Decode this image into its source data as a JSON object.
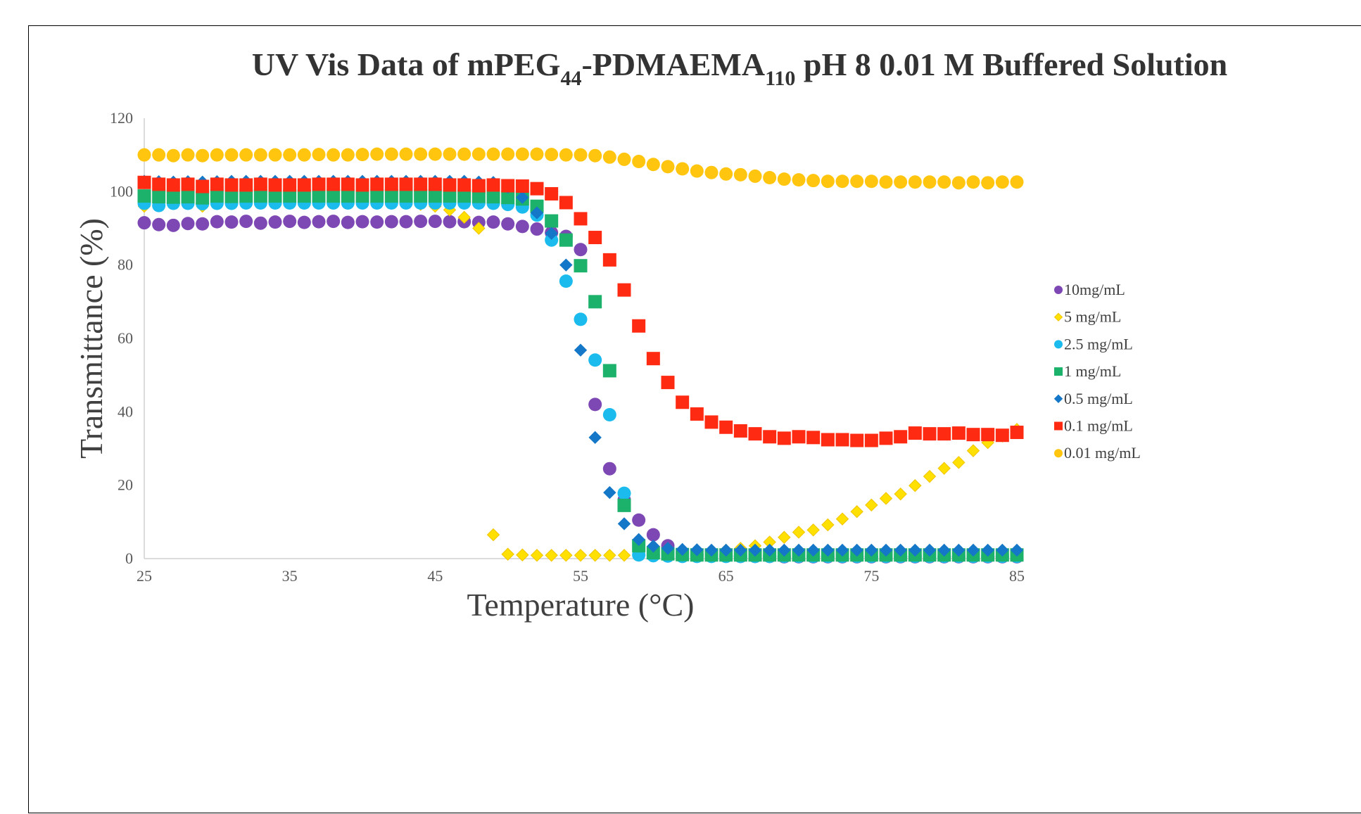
{
  "chart_data": {
    "type": "scatter",
    "title_parts": [
      {
        "text": "UV Vis Data of mPEG",
        "sub": false
      },
      {
        "text": "44",
        "sub": true
      },
      {
        "text": "-PDMAEMA",
        "sub": false
      },
      {
        "text": "110",
        "sub": true
      },
      {
        "text": " pH 8 0.01 M Buffered Solution",
        "sub": false
      }
    ],
    "xlabel": "Temperature (°C)",
    "ylabel": "Transmittance (%)",
    "xlim": [
      25,
      85
    ],
    "ylim": [
      0,
      120
    ],
    "xticks": [
      25,
      35,
      45,
      55,
      65,
      75,
      85
    ],
    "yticks": [
      0,
      20,
      40,
      60,
      80,
      100,
      120
    ],
    "grid": false,
    "legend_position": "right",
    "series": [
      {
        "name": "10mg/mL",
        "marker": "circle",
        "color": "#7D47B4",
        "x": [
          25,
          26,
          27,
          28,
          29,
          30,
          31,
          32,
          33,
          34,
          35,
          36,
          37,
          38,
          39,
          40,
          41,
          42,
          43,
          44,
          45,
          46,
          47,
          48,
          49,
          50,
          51,
          52,
          53,
          54,
          55,
          56,
          57,
          58,
          59,
          60,
          61,
          62,
          63,
          64,
          65,
          66,
          67,
          68,
          69,
          70,
          71,
          72,
          73,
          74,
          75,
          76,
          77,
          78,
          79,
          80,
          81,
          82,
          83,
          84,
          85
        ],
        "y": [
          91.5,
          91,
          90.8,
          91.3,
          91.2,
          91.8,
          91.7,
          91.9,
          91.4,
          91.7,
          91.9,
          91.6,
          91.8,
          91.9,
          91.6,
          91.8,
          91.7,
          91.8,
          91.8,
          91.9,
          91.9,
          91.8,
          91.8,
          91.6,
          91.7,
          91.2,
          90.5,
          89.8,
          88.8,
          87.8,
          84.2,
          42,
          24.5,
          16,
          10.5,
          6.5,
          3.5,
          1.5,
          1,
          0.8,
          0.7,
          0.6,
          0.6,
          0.6,
          0.5,
          0.5,
          0.5,
          0.5,
          0.5,
          0.5,
          0.5,
          0.5,
          0.5,
          0.5,
          0.5,
          0.5,
          0.5,
          0.5,
          0.5,
          0.5,
          0.5
        ]
      },
      {
        "name": "5 mg/mL",
        "marker": "diamond",
        "color": "#FFE000",
        "x": [
          25,
          26,
          27,
          28,
          29,
          30,
          31,
          32,
          33,
          34,
          35,
          36,
          37,
          38,
          39,
          40,
          41,
          42,
          43,
          44,
          45,
          46,
          47,
          48,
          49,
          50,
          51,
          52,
          53,
          54,
          55,
          56,
          57,
          58,
          59,
          60,
          61,
          62,
          63,
          64,
          65,
          66,
          67,
          68,
          69,
          70,
          71,
          72,
          73,
          74,
          75,
          76,
          77,
          78,
          79,
          80,
          81,
          82,
          83,
          84,
          85
        ],
        "y": [
          96,
          97,
          97.5,
          97,
          96,
          97,
          97.5,
          97.5,
          97.5,
          97.5,
          97.5,
          97.5,
          97.5,
          97.5,
          97.5,
          97.5,
          97.5,
          97.5,
          97,
          96.5,
          96,
          95,
          93,
          90,
          6.5,
          1.2,
          1,
          0.9,
          0.9,
          0.9,
          0.9,
          0.9,
          0.9,
          0.9,
          0.9,
          1,
          1.2,
          1.4,
          1.6,
          1.9,
          2.3,
          2.8,
          3.5,
          4.5,
          5.8,
          7.2,
          7.8,
          9.2,
          10.8,
          12.8,
          14.6,
          16.4,
          17.6,
          19.9,
          22.4,
          24.6,
          26.2,
          29.4,
          31.6,
          33.4,
          35.2
        ]
      },
      {
        "name": "2.5 mg/mL",
        "marker": "circle",
        "color": "#1BBBEE",
        "x": [
          25,
          26,
          27,
          28,
          29,
          30,
          31,
          32,
          33,
          34,
          35,
          36,
          37,
          38,
          39,
          40,
          41,
          42,
          43,
          44,
          45,
          46,
          47,
          48,
          49,
          50,
          51,
          52,
          53,
          54,
          55,
          56,
          57,
          58,
          59,
          60,
          61,
          62,
          63,
          64,
          65,
          66,
          67,
          68,
          69,
          70,
          71,
          72,
          73,
          74,
          75,
          76,
          77,
          78,
          79,
          80,
          81,
          82,
          83,
          84,
          85
        ],
        "y": [
          96.8,
          96.2,
          96.8,
          96.8,
          96.7,
          96.8,
          96.8,
          96.9,
          96.9,
          96.9,
          96.9,
          96.9,
          96.9,
          96.9,
          96.9,
          96.9,
          96.9,
          96.9,
          96.9,
          96.9,
          96.9,
          96.9,
          96.9,
          96.9,
          96.8,
          96.5,
          95.8,
          93.6,
          86.8,
          75.6,
          65.2,
          54.1,
          39.2,
          17.8,
          1,
          0.8,
          0.7,
          0.6,
          0.6,
          0.6,
          0.6,
          0.6,
          0.6,
          0.6,
          0.6,
          0.6,
          0.6,
          0.6,
          0.6,
          0.6,
          0.6,
          0.6,
          0.6,
          0.6,
          0.6,
          0.6,
          0.6,
          0.6,
          0.6,
          0.6,
          0.6
        ]
      },
      {
        "name": "1 mg/mL",
        "marker": "square",
        "color": "#1DB26B",
        "x": [
          25,
          26,
          27,
          28,
          29,
          30,
          31,
          32,
          33,
          34,
          35,
          36,
          37,
          38,
          39,
          40,
          41,
          42,
          43,
          44,
          45,
          46,
          47,
          48,
          49,
          50,
          51,
          52,
          53,
          54,
          55,
          56,
          57,
          58,
          59,
          60,
          61,
          62,
          63,
          64,
          65,
          66,
          67,
          68,
          69,
          70,
          71,
          72,
          73,
          74,
          75,
          76,
          77,
          78,
          79,
          80,
          81,
          82,
          83,
          84,
          85
        ],
        "y": [
          98.8,
          98.6,
          98.5,
          98.6,
          98.3,
          98.8,
          98.7,
          98.8,
          98.8,
          98.8,
          98.8,
          98.8,
          98.8,
          98.8,
          98.8,
          98.8,
          98.8,
          98.8,
          98.8,
          98.8,
          98.8,
          98.8,
          98.8,
          98.7,
          98.6,
          98.4,
          98,
          96,
          92,
          86.8,
          79.8,
          70,
          51.2,
          14.5,
          3.5,
          1.6,
          1.3,
          1.1,
          1,
          1,
          1,
          1,
          1,
          1,
          1,
          1,
          1,
          1,
          1,
          1,
          1,
          1,
          1,
          1,
          1,
          1,
          1,
          1,
          1,
          1,
          1
        ]
      },
      {
        "name": "0.5 mg/mL",
        "marker": "diamond",
        "color": "#1577C7",
        "x": [
          25,
          26,
          27,
          28,
          29,
          30,
          31,
          32,
          33,
          34,
          35,
          36,
          37,
          38,
          39,
          40,
          41,
          42,
          43,
          44,
          45,
          46,
          47,
          48,
          49,
          50,
          51,
          52,
          53,
          54,
          55,
          56,
          57,
          58,
          59,
          60,
          61,
          62,
          63,
          64,
          65,
          66,
          67,
          68,
          69,
          70,
          71,
          72,
          73,
          74,
          75,
          76,
          77,
          78,
          79,
          80,
          81,
          82,
          83,
          84,
          85
        ],
        "y": [
          102.8,
          102.7,
          102.6,
          102.7,
          102.6,
          102.7,
          102.8,
          102.8,
          102.8,
          102.8,
          102.8,
          102.8,
          102.8,
          102.8,
          102.8,
          102.8,
          102.8,
          102.8,
          102.8,
          102.8,
          102.8,
          102.8,
          102.8,
          102.6,
          102.5,
          101.2,
          98.4,
          94.2,
          88.6,
          80,
          56.8,
          33,
          18,
          9.5,
          5.2,
          3.4,
          2.8,
          2.5,
          2.4,
          2.3,
          2.3,
          2.3,
          2.3,
          2.3,
          2.3,
          2.3,
          2.3,
          2.3,
          2.3,
          2.3,
          2.3,
          2.3,
          2.3,
          2.3,
          2.3,
          2.3,
          2.3,
          2.3,
          2.3,
          2.3,
          2.3
        ]
      },
      {
        "name": "0.1 mg/mL",
        "marker": "square",
        "color": "#FF2A12",
        "x": [
          25,
          26,
          27,
          28,
          29,
          30,
          31,
          32,
          33,
          34,
          35,
          36,
          37,
          38,
          39,
          40,
          41,
          42,
          43,
          44,
          45,
          46,
          47,
          48,
          49,
          50,
          51,
          52,
          53,
          54,
          55,
          56,
          57,
          58,
          59,
          60,
          61,
          62,
          63,
          64,
          65,
          66,
          67,
          68,
          69,
          70,
          71,
          72,
          73,
          74,
          75,
          76,
          77,
          78,
          79,
          80,
          81,
          82,
          83,
          84,
          85
        ],
        "y": [
          102.5,
          102,
          101.8,
          102,
          101.4,
          102,
          101.8,
          101.8,
          102,
          101.8,
          101.8,
          101.8,
          102,
          102,
          102,
          101.8,
          102,
          102,
          102,
          102,
          102,
          101.8,
          101.8,
          101.6,
          101.8,
          101.6,
          101.5,
          100.8,
          99.4,
          97,
          92.6,
          87.5,
          81.4,
          73.2,
          63.4,
          54.5,
          48,
          42.6,
          39.4,
          37.2,
          35.8,
          34.8,
          34,
          33.2,
          32.8,
          33.2,
          33,
          32.4,
          32.4,
          32.2,
          32.2,
          32.8,
          33.2,
          34.2,
          34,
          34,
          34.2,
          33.8,
          33.8,
          33.6,
          34.4
        ]
      },
      {
        "name": "0.01 mg/mL",
        "marker": "circle",
        "color": "#FFC50F",
        "x": [
          25,
          26,
          27,
          28,
          29,
          30,
          31,
          32,
          33,
          34,
          35,
          36,
          37,
          38,
          39,
          40,
          41,
          42,
          43,
          44,
          45,
          46,
          47,
          48,
          49,
          50,
          51,
          52,
          53,
          54,
          55,
          56,
          57,
          58,
          59,
          60,
          61,
          62,
          63,
          64,
          65,
          66,
          67,
          68,
          69,
          70,
          71,
          72,
          73,
          74,
          75,
          76,
          77,
          78,
          79,
          80,
          81,
          82,
          83,
          84,
          85
        ],
        "y": [
          110,
          110,
          109.8,
          110,
          109.8,
          110,
          110,
          110,
          110,
          110,
          110,
          110,
          110.1,
          110,
          110,
          110.1,
          110.2,
          110.2,
          110.2,
          110.2,
          110.2,
          110.2,
          110.2,
          110.2,
          110.2,
          110.2,
          110.2,
          110.2,
          110.1,
          110,
          110,
          109.8,
          109.4,
          108.8,
          108.2,
          107.4,
          106.8,
          106.2,
          105.6,
          105.2,
          104.8,
          104.6,
          104.2,
          103.8,
          103.4,
          103.2,
          103,
          102.8,
          102.8,
          102.8,
          102.8,
          102.6,
          102.6,
          102.6,
          102.6,
          102.6,
          102.4,
          102.6,
          102.4,
          102.6,
          102.6
        ]
      }
    ]
  }
}
